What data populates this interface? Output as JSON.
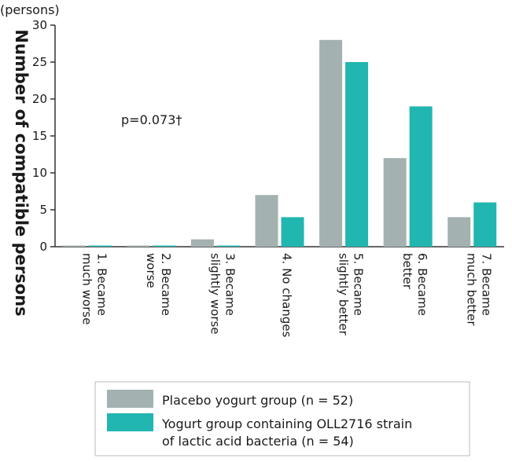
{
  "chart_data": {
    "type": "bar",
    "title": "",
    "unit_label": "(persons)",
    "ylabel": "Number of compatible persons",
    "xlabel": "",
    "ylim": [
      0,
      30
    ],
    "yticks": [
      0,
      5,
      10,
      15,
      20,
      25,
      30
    ],
    "grid": false,
    "categories": [
      [
        "1. Became",
        "much worse"
      ],
      [
        "2. Became",
        "worse"
      ],
      [
        "3. Became",
        "slightly worse"
      ],
      [
        "4. No changes"
      ],
      [
        "5. Became",
        "slightly better"
      ],
      [
        "6. Became",
        "better"
      ],
      [
        "7. Became",
        "much better"
      ]
    ],
    "series": [
      {
        "name": "Placebo yogurt group (n = 52)",
        "color": "#a4b1b1",
        "values": [
          0,
          0,
          1,
          7,
          28,
          12,
          4
        ]
      },
      {
        "name": "Yogurt group containing OLL2716 strain of lactic acid bacteria (n = 54)",
        "color": "#21b6b0",
        "values": [
          0,
          0,
          0,
          4,
          25,
          19,
          6
        ]
      }
    ],
    "annotation": "p=0.073†",
    "legend": {
      "placement": "bottom",
      "entries": [
        [
          "Placebo yogurt group (n = 52)"
        ],
        [
          "Yogurt group containing OLL2716 strain",
          "of lactic acid bacteria (n = 54)"
        ]
      ]
    }
  }
}
